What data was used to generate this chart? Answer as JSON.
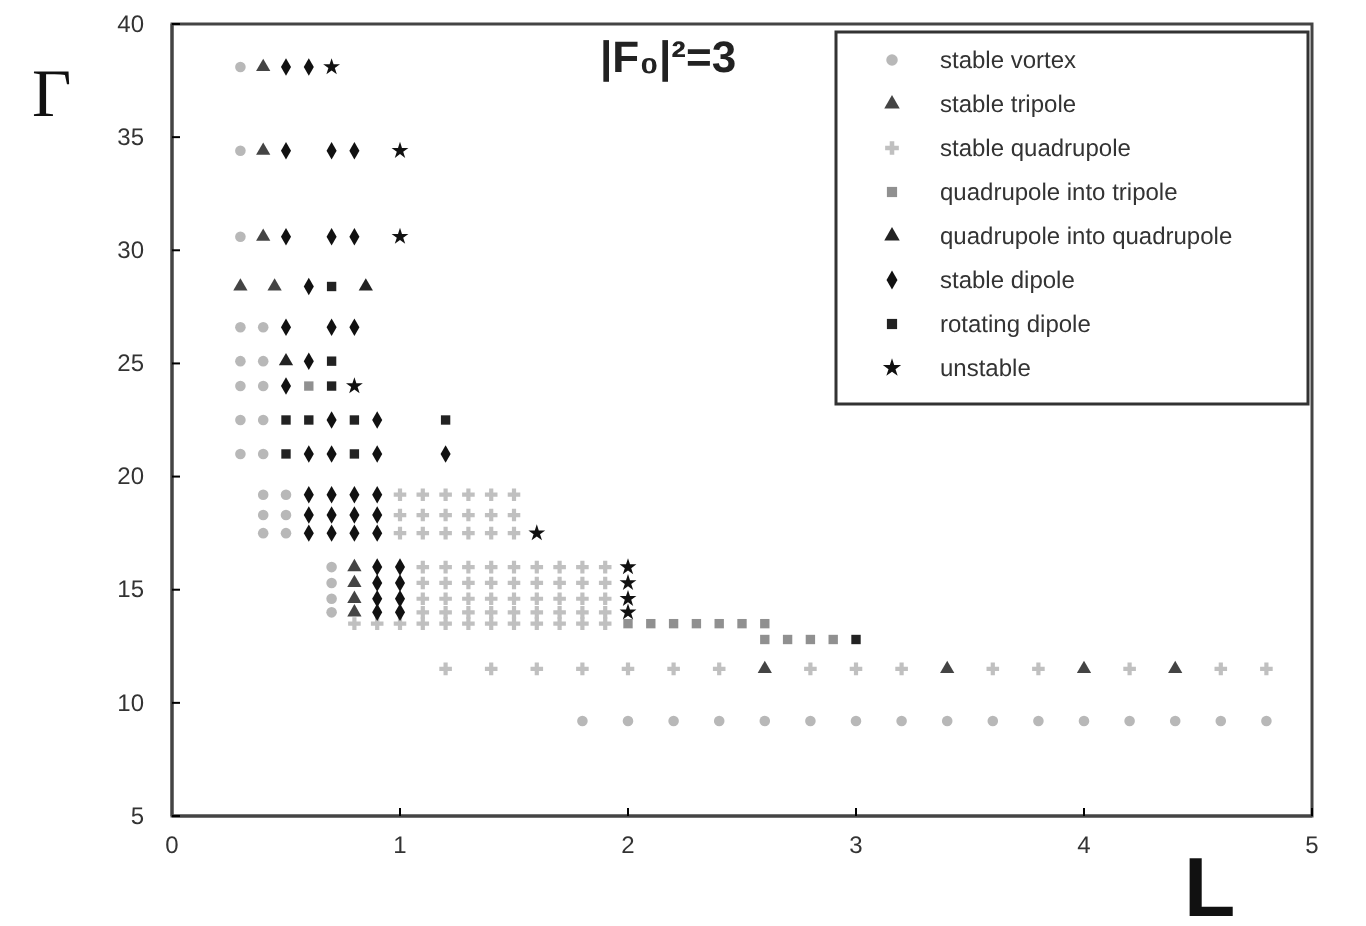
{
  "chart_data": {
    "type": "scatter",
    "title": "|F₀|²=3",
    "xlabel": "L",
    "ylabel": "Γ",
    "xlim": [
      0,
      5
    ],
    "xticks": [
      0,
      1,
      2,
      3,
      4,
      5
    ],
    "ylim": [
      5,
      40
    ],
    "yticks": [
      5,
      10,
      15,
      20,
      25,
      30,
      35,
      40
    ],
    "grid": false,
    "legend": "top right",
    "series": [
      {
        "name": "stable vortex",
        "color": "#b8b8b8",
        "marker": "circle",
        "x": [
          0.3,
          0.3,
          0.3,
          0.3,
          0.4,
          0.3,
          0.4,
          0.3,
          0.4,
          0.3,
          0.4,
          0.3,
          0.4,
          0.4,
          0.5,
          0.4,
          0.5,
          0.4,
          0.5,
          0.7,
          0.7,
          0.7,
          0.7,
          1.8,
          2.0,
          2.2,
          2.4,
          2.6,
          2.8,
          3.0,
          3.2,
          3.4,
          3.6,
          3.8,
          4.0,
          4.2,
          4.4,
          4.6,
          4.8
        ],
        "values": [
          38.1,
          34.4,
          30.6,
          26.6,
          26.6,
          25.1,
          25.1,
          24,
          24,
          22.5,
          22.5,
          21,
          21,
          19.2,
          19.2,
          18.3,
          18.3,
          17.5,
          17.5,
          16,
          15.3,
          14.6,
          14,
          9.2,
          9.2,
          9.2,
          9.2,
          9.2,
          9.2,
          9.2,
          9.2,
          9.2,
          9.2,
          9.2,
          9.2,
          9.2,
          9.2,
          9.2,
          9.2
        ]
      },
      {
        "name": "stable tripole",
        "color": "#444444",
        "marker": "triangle",
        "x": [
          0.4,
          0.4,
          0.4,
          0.3,
          0.45,
          0.8,
          0.8,
          0.8,
          0.8,
          2.6,
          3.4,
          4.0,
          4.4
        ],
        "values": [
          38.1,
          34.4,
          30.6,
          28.4,
          28.4,
          16,
          15.3,
          14.6,
          14,
          11.5,
          11.5,
          11.5,
          11.5
        ]
      },
      {
        "name": "stable quadrupole",
        "color": "#c0c0c0",
        "marker": "cross",
        "x": [
          1.0,
          1.1,
          1.2,
          1.3,
          1.4,
          1.5,
          1.0,
          1.1,
          1.2,
          1.3,
          1.4,
          1.5,
          1.0,
          1.1,
          1.2,
          1.3,
          1.4,
          1.5,
          1.1,
          1.2,
          1.3,
          1.4,
          1.5,
          1.6,
          1.7,
          1.8,
          1.9,
          1.1,
          1.2,
          1.3,
          1.4,
          1.5,
          1.6,
          1.7,
          1.8,
          1.9,
          1.1,
          1.2,
          1.3,
          1.4,
          1.5,
          1.6,
          1.7,
          1.8,
          1.9,
          1.1,
          1.2,
          1.3,
          1.4,
          1.5,
          1.6,
          1.7,
          1.8,
          1.9,
          0.8,
          0.9,
          1.0,
          1.1,
          1.2,
          1.3,
          1.4,
          1.5,
          1.6,
          1.7,
          1.8,
          1.9,
          1.2,
          1.4,
          1.6,
          1.8,
          2.0,
          2.2,
          2.4,
          2.8,
          3.0,
          3.2,
          3.6,
          3.8,
          4.2,
          4.6,
          4.8
        ],
        "values": [
          19.2,
          19.2,
          19.2,
          19.2,
          19.2,
          19.2,
          18.3,
          18.3,
          18.3,
          18.3,
          18.3,
          18.3,
          17.5,
          17.5,
          17.5,
          17.5,
          17.5,
          17.5,
          16,
          16,
          16,
          16,
          16,
          16,
          16,
          16,
          16,
          15.3,
          15.3,
          15.3,
          15.3,
          15.3,
          15.3,
          15.3,
          15.3,
          15.3,
          14.6,
          14.6,
          14.6,
          14.6,
          14.6,
          14.6,
          14.6,
          14.6,
          14.6,
          14,
          14,
          14,
          14,
          14,
          14,
          14,
          14,
          14,
          13.5,
          13.5,
          13.5,
          13.5,
          13.5,
          13.5,
          13.5,
          13.5,
          13.5,
          13.5,
          13.5,
          13.5,
          11.5,
          11.5,
          11.5,
          11.5,
          11.5,
          11.5,
          11.5,
          11.5,
          11.5,
          11.5,
          11.5,
          11.5,
          11.5,
          11.5,
          11.5
        ]
      },
      {
        "name": "quadrupole into tripole",
        "color": "#909090",
        "marker": "square",
        "x": [
          0.6,
          2.0,
          2.1,
          2.2,
          2.3,
          2.4,
          2.5,
          2.6,
          2.6,
          2.7,
          2.8,
          2.9
        ],
        "values": [
          24,
          13.5,
          13.5,
          13.5,
          13.5,
          13.5,
          13.5,
          13.5,
          12.8,
          12.8,
          12.8,
          12.8
        ]
      },
      {
        "name": "quadrupole into quadrupole",
        "color": "#222222",
        "marker": "triangle",
        "x": [
          0.85,
          0.5
        ],
        "values": [
          28.4,
          25.1
        ]
      },
      {
        "name": "stable dipole",
        "color": "#111111",
        "marker": "diamond",
        "x": [
          0.5,
          0.6,
          0.5,
          0.7,
          0.8,
          0.5,
          0.7,
          0.8,
          0.6,
          0.5,
          0.7,
          0.8,
          0.6,
          0.5,
          0.7,
          0.9,
          0.6,
          0.7,
          0.9,
          1.2,
          0.6,
          0.7,
          0.8,
          0.9,
          0.6,
          0.7,
          0.8,
          0.9,
          0.6,
          0.7,
          0.8,
          0.9,
          0.9,
          1.0,
          0.9,
          1.0,
          0.9,
          1.0,
          0.9,
          1.0
        ],
        "values": [
          38.1,
          38.1,
          34.4,
          34.4,
          34.4,
          30.6,
          30.6,
          30.6,
          28.4,
          26.6,
          26.6,
          26.6,
          25.1,
          24,
          22.5,
          22.5,
          21,
          21,
          21,
          21,
          19.2,
          19.2,
          19.2,
          19.2,
          18.3,
          18.3,
          18.3,
          18.3,
          17.5,
          17.5,
          17.5,
          17.5,
          16,
          16,
          15.3,
          15.3,
          14.6,
          14.6,
          14,
          14
        ]
      },
      {
        "name": "rotating dipole",
        "color": "#222222",
        "marker": "square",
        "x": [
          0.7,
          0.7,
          0.7,
          0.5,
          0.6,
          0.8,
          1.2,
          0.5,
          0.8,
          3.0
        ],
        "values": [
          28.4,
          25.1,
          24,
          22.5,
          22.5,
          22.5,
          22.5,
          21,
          21,
          12.8
        ]
      },
      {
        "name": "unstable",
        "color": "#111111",
        "marker": "star",
        "x": [
          0.7,
          1.0,
          1.0,
          0.8,
          1.6,
          2.0,
          2.0,
          2.0,
          2.0
        ],
        "values": [
          38.1,
          34.4,
          30.6,
          24,
          17.5,
          16,
          15.3,
          14.6,
          14
        ]
      }
    ]
  }
}
